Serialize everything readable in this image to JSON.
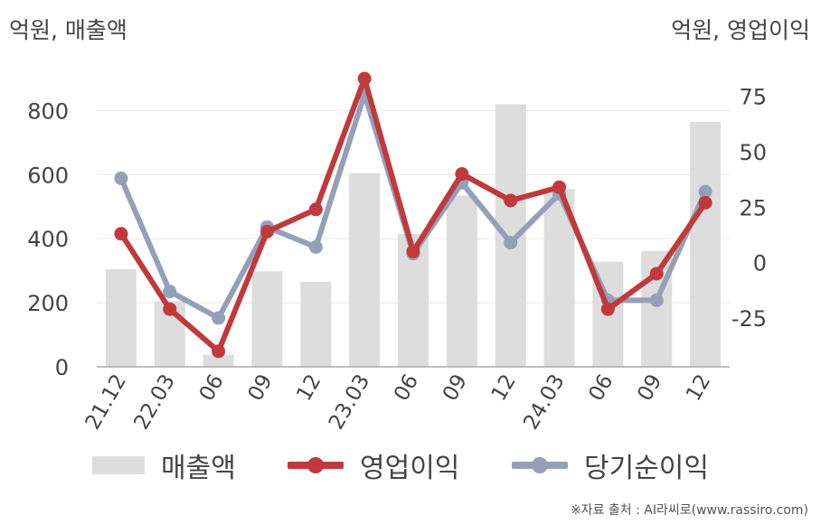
{
  "units": {
    "left": "억원, 매출액",
    "right": "억원, 영업이익"
  },
  "source": "※자료 출처 : AI라씨로(www.rassiro.com)",
  "colors": {
    "revenue": "#dddddd",
    "operating_profit": "#c1393b",
    "net_profit": "#94a0b8",
    "axis_text": "#444444",
    "grid": "#e8e8e8"
  },
  "chart_data": {
    "type": "bar",
    "categories": [
      "21.12",
      "22.03",
      "06",
      "09",
      "12",
      "23.03",
      "06",
      "09",
      "12",
      "24.03",
      "06",
      "09",
      "12"
    ],
    "left_axis": {
      "ticks": [
        0,
        200,
        400,
        600,
        800
      ],
      "range": [
        0,
        900
      ]
    },
    "right_axis": {
      "ticks": [
        -25,
        0,
        25,
        50,
        75
      ],
      "range": [
        -47,
        83
      ]
    },
    "series": [
      {
        "name": "매출액",
        "type": "bar",
        "axis": "left",
        "values": [
          305,
          205,
          38,
          298,
          265,
          605,
          415,
          535,
          820,
          555,
          328,
          362,
          765
        ]
      },
      {
        "name": "영업이익",
        "type": "line",
        "axis": "right",
        "values": [
          13,
          -21,
          -40,
          14,
          24,
          83,
          5,
          40,
          28,
          34,
          -21,
          -5,
          27
        ]
      },
      {
        "name": "당기순이익",
        "type": "line",
        "axis": "right",
        "values": [
          38,
          -13,
          -25,
          16,
          7,
          76,
          4,
          36,
          9,
          31,
          -17,
          -17,
          32
        ]
      }
    ],
    "legend_position": "bottom"
  }
}
